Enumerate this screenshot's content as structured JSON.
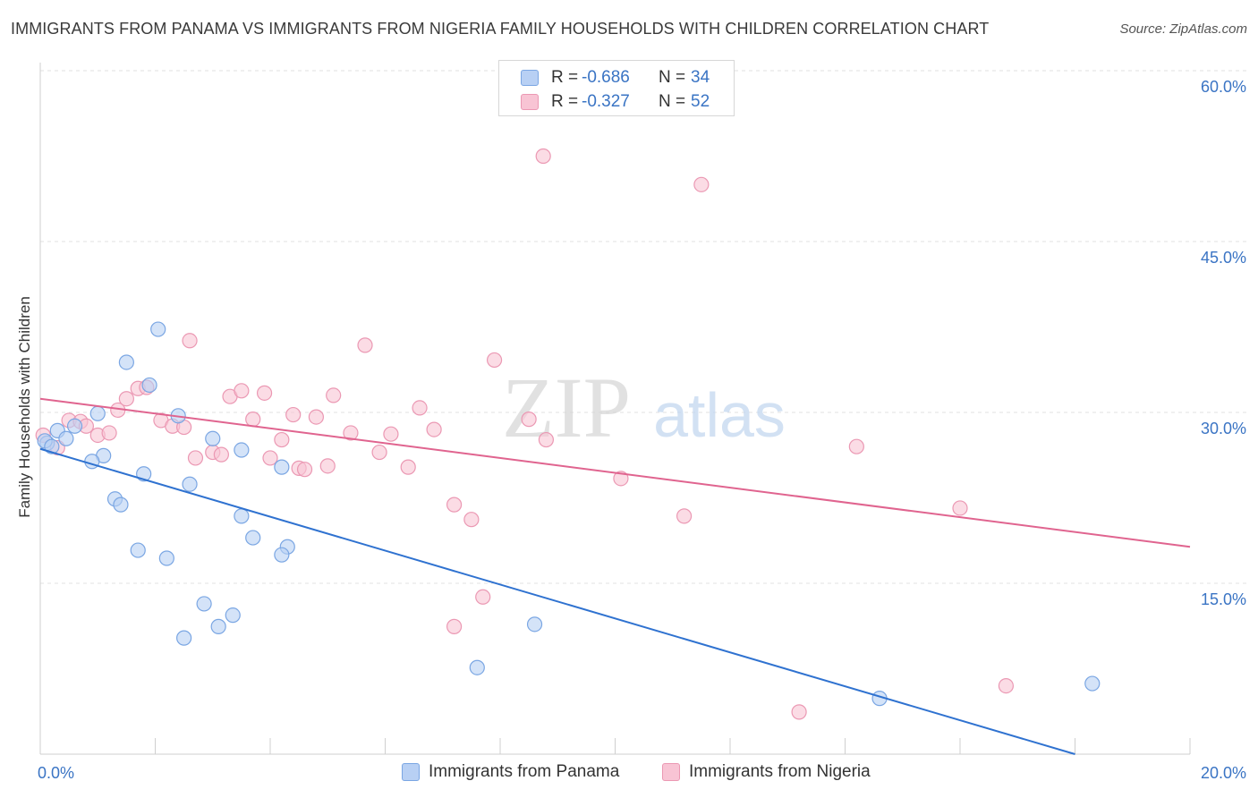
{
  "title": "IMMIGRANTS FROM PANAMA VS IMMIGRANTS FROM NIGERIA FAMILY HOUSEHOLDS WITH CHILDREN CORRELATION CHART",
  "source": "Source: ZipAtlas.com",
  "watermark": {
    "zip": "ZIP",
    "atlas": "atlas"
  },
  "legend": {
    "r_label": "R =",
    "n_label": "N =",
    "series": [
      {
        "r": "-0.686",
        "n": "34"
      },
      {
        "r": "-0.327",
        "n": "52"
      }
    ]
  },
  "colors": {
    "panama_fill": "#b8d0f4",
    "panama_stroke": "#7aa6e3",
    "panama_line": "#2f72d0",
    "nigeria_fill": "#f8c4d4",
    "nigeria_stroke": "#eb98b3",
    "nigeria_line": "#e0648f",
    "tick_label": "#3a74c4"
  },
  "chart_data": {
    "type": "scatter",
    "title": "IMMIGRANTS FROM PANAMA VS IMMIGRANTS FROM NIGERIA FAMILY HOUSEHOLDS WITH CHILDREN CORRELATION CHART",
    "xlabel": "",
    "ylabel": "Family Households with Children",
    "xlim": [
      0,
      20
    ],
    "ylim": [
      0,
      62
    ],
    "x_tick_labels": [
      {
        "value": 0,
        "label": "0.0%"
      },
      {
        "value": 20,
        "label": "20.0%"
      }
    ],
    "y_tick_labels": [
      {
        "value": 15,
        "label": "15.0%"
      },
      {
        "value": 30,
        "label": "30.0%"
      },
      {
        "value": 45,
        "label": "45.0%"
      },
      {
        "value": 60,
        "label": "60.0%"
      }
    ],
    "grid": true,
    "series": [
      {
        "name": "Immigrants from Panama",
        "r": -0.686,
        "n": 34,
        "trend": {
          "x": [
            0,
            18
          ],
          "y": [
            26.8,
            0
          ]
        },
        "points": [
          [
            0.12,
            27.3
          ],
          [
            0.3,
            28.4
          ],
          [
            0.6,
            28.8
          ],
          [
            0.45,
            27.7
          ],
          [
            1.0,
            29.9
          ],
          [
            1.1,
            26.2
          ],
          [
            0.9,
            25.7
          ],
          [
            1.5,
            34.4
          ],
          [
            2.05,
            37.3
          ],
          [
            1.9,
            32.4
          ],
          [
            2.4,
            29.7
          ],
          [
            3.0,
            27.7
          ],
          [
            3.5,
            26.7
          ],
          [
            4.2,
            25.2
          ],
          [
            1.8,
            24.6
          ],
          [
            2.6,
            23.7
          ],
          [
            1.3,
            22.4
          ],
          [
            1.4,
            21.9
          ],
          [
            3.5,
            20.9
          ],
          [
            3.7,
            19.0
          ],
          [
            4.3,
            18.2
          ],
          [
            4.2,
            17.5
          ],
          [
            1.7,
            17.9
          ],
          [
            2.2,
            17.2
          ],
          [
            2.85,
            13.2
          ],
          [
            3.35,
            12.2
          ],
          [
            3.1,
            11.2
          ],
          [
            2.5,
            10.2
          ],
          [
            7.6,
            7.6
          ],
          [
            8.6,
            11.4
          ],
          [
            14.6,
            4.9
          ],
          [
            18.3,
            6.2
          ],
          [
            0.08,
            27.5
          ],
          [
            0.2,
            27.0
          ]
        ]
      },
      {
        "name": "Immigrants from Nigeria",
        "r": -0.327,
        "n": 52,
        "trend": {
          "x": [
            0,
            20
          ],
          "y": [
            31.2,
            18.2
          ]
        },
        "points": [
          [
            0.05,
            28.0
          ],
          [
            0.3,
            26.9
          ],
          [
            0.5,
            29.3
          ],
          [
            0.7,
            29.2
          ],
          [
            0.8,
            28.8
          ],
          [
            1.0,
            28.0
          ],
          [
            1.2,
            28.2
          ],
          [
            1.35,
            30.2
          ],
          [
            1.5,
            31.2
          ],
          [
            1.7,
            32.1
          ],
          [
            1.85,
            32.2
          ],
          [
            2.1,
            29.3
          ],
          [
            2.3,
            28.8
          ],
          [
            2.5,
            28.7
          ],
          [
            2.6,
            36.3
          ],
          [
            2.7,
            26.0
          ],
          [
            3.0,
            26.5
          ],
          [
            3.15,
            26.3
          ],
          [
            3.3,
            31.4
          ],
          [
            3.5,
            31.9
          ],
          [
            3.7,
            29.4
          ],
          [
            3.9,
            31.7
          ],
          [
            4.0,
            26.0
          ],
          [
            4.2,
            27.6
          ],
          [
            4.4,
            29.8
          ],
          [
            4.5,
            25.1
          ],
          [
            4.6,
            25.0
          ],
          [
            4.8,
            29.6
          ],
          [
            5.0,
            25.3
          ],
          [
            5.1,
            31.5
          ],
          [
            5.4,
            28.2
          ],
          [
            5.65,
            35.9
          ],
          [
            5.9,
            26.5
          ],
          [
            6.1,
            28.1
          ],
          [
            6.4,
            25.2
          ],
          [
            6.6,
            30.4
          ],
          [
            6.85,
            28.5
          ],
          [
            7.2,
            21.9
          ],
          [
            7.5,
            20.6
          ],
          [
            7.7,
            13.8
          ],
          [
            7.2,
            11.2
          ],
          [
            7.9,
            34.6
          ],
          [
            8.5,
            29.4
          ],
          [
            8.8,
            27.6
          ],
          [
            8.75,
            52.5
          ],
          [
            10.1,
            24.2
          ],
          [
            11.2,
            20.9
          ],
          [
            11.5,
            50.0
          ],
          [
            14.2,
            27.0
          ],
          [
            16.0,
            21.6
          ],
          [
            16.8,
            6.0
          ],
          [
            13.2,
            3.7
          ]
        ]
      }
    ]
  }
}
